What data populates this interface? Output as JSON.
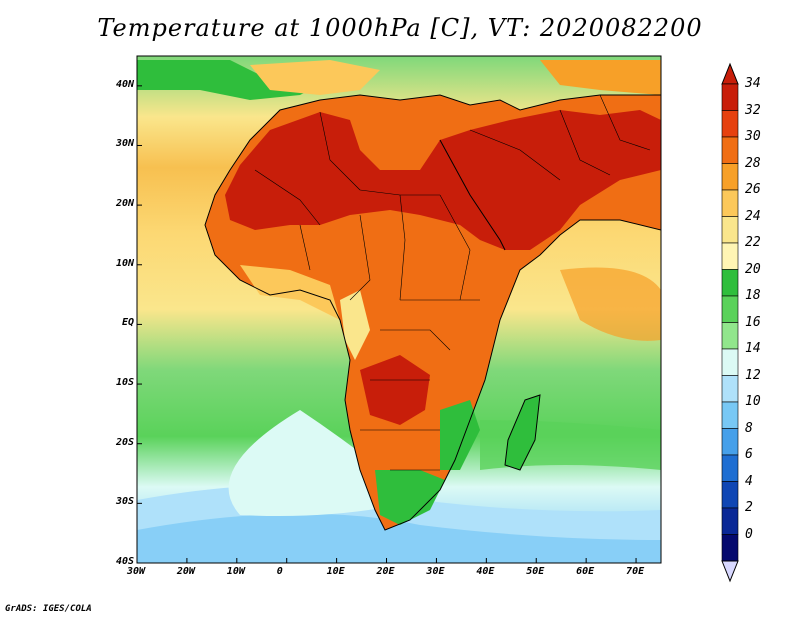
{
  "title": "Temperature at 1000hPa [C], VT: 2020082200",
  "credit": "GrADS: IGES/COLA",
  "map": {
    "lat_range": [
      -40,
      45
    ],
    "lon_range": [
      -30,
      75
    ],
    "lat_ticks": [
      {
        "value": 40,
        "label": "40N"
      },
      {
        "value": 30,
        "label": "30N"
      },
      {
        "value": 20,
        "label": "20N"
      },
      {
        "value": 10,
        "label": "10N"
      },
      {
        "value": 0,
        "label": "EQ"
      },
      {
        "value": -10,
        "label": "10S"
      },
      {
        "value": -20,
        "label": "20S"
      },
      {
        "value": -30,
        "label": "30S"
      },
      {
        "value": -40,
        "label": "40S"
      }
    ],
    "lon_ticks": [
      {
        "value": -30,
        "label": "30W"
      },
      {
        "value": -20,
        "label": "20W"
      },
      {
        "value": -10,
        "label": "10W"
      },
      {
        "value": 0,
        "label": "0"
      },
      {
        "value": 10,
        "label": "10E"
      },
      {
        "value": 20,
        "label": "20E"
      },
      {
        "value": 30,
        "label": "30E"
      },
      {
        "value": 40,
        "label": "40E"
      },
      {
        "value": 50,
        "label": "50E"
      },
      {
        "value": 60,
        "label": "60E"
      },
      {
        "value": 70,
        "label": "70E"
      }
    ]
  },
  "colorbar": {
    "levels": [
      "34",
      "32",
      "30",
      "28",
      "26",
      "24",
      "22",
      "20",
      "18",
      "16",
      "14",
      "12",
      "10",
      "8",
      "6",
      "4",
      "2",
      "0"
    ],
    "colors": [
      "#c81e0a",
      "#e6410f",
      "#f06e14",
      "#f7a028",
      "#fcc85a",
      "#fae68c",
      "#fff5b4",
      "#2fbe3c",
      "#5ad25a",
      "#91e68c",
      "#dcfaf5",
      "#afe1fa",
      "#78c8f5",
      "#46a0ea",
      "#1e6ed2",
      "#0f46b4",
      "#0a2896",
      "#050a6e"
    ]
  },
  "colors": {
    "ocean_warm": "#fae68c",
    "ocean_cool": "#91e68c",
    "ocean_cold": "#afe1fa",
    "land_hot": "#c81e0a",
    "coast_line": "#000000"
  }
}
